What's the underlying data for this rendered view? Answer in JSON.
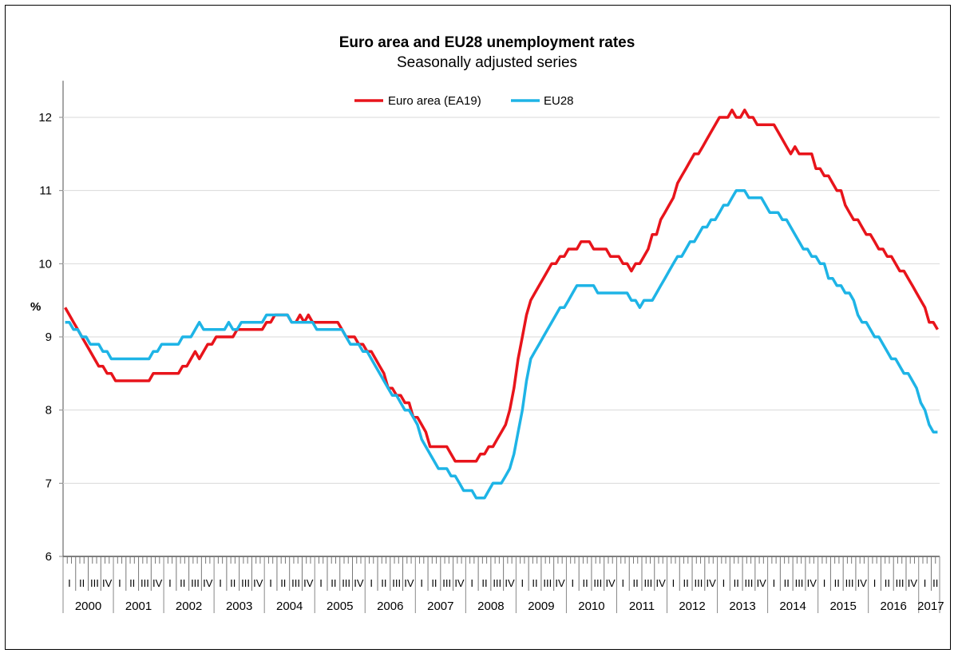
{
  "chart_data": {
    "type": "line",
    "title": "Euro area and EU28 unemployment rates",
    "subtitle": "Seasonally adjusted series",
    "ylabel": "%",
    "xlabel": "",
    "ylim": [
      6,
      12.5
    ],
    "yticks": [
      6,
      7,
      8,
      9,
      10,
      11,
      12
    ],
    "grid": true,
    "legend_position": "top-center",
    "x_start": "2000-01",
    "frequency": "monthly",
    "years": [
      "2000",
      "2001",
      "2002",
      "2003",
      "2004",
      "2005",
      "2006",
      "2007",
      "2008",
      "2009",
      "2010",
      "2011",
      "2012",
      "2013",
      "2014",
      "2015",
      "2016",
      "2017"
    ],
    "quarter_labels": [
      "I",
      "II",
      "III",
      "IV"
    ],
    "series": [
      {
        "name": "Euro area (EA19)",
        "color": "#e8141b",
        "values": [
          9.4,
          9.3,
          9.2,
          9.1,
          9.0,
          8.9,
          8.8,
          8.7,
          8.6,
          8.6,
          8.5,
          8.5,
          8.4,
          8.4,
          8.4,
          8.4,
          8.4,
          8.4,
          8.4,
          8.4,
          8.4,
          8.5,
          8.5,
          8.5,
          8.5,
          8.5,
          8.5,
          8.5,
          8.6,
          8.6,
          8.7,
          8.8,
          8.7,
          8.8,
          8.9,
          8.9,
          9.0,
          9.0,
          9.0,
          9.0,
          9.0,
          9.1,
          9.1,
          9.1,
          9.1,
          9.1,
          9.1,
          9.1,
          9.2,
          9.2,
          9.3,
          9.3,
          9.3,
          9.3,
          9.2,
          9.2,
          9.3,
          9.2,
          9.3,
          9.2,
          9.2,
          9.2,
          9.2,
          9.2,
          9.2,
          9.2,
          9.1,
          9.0,
          9.0,
          9.0,
          8.9,
          8.9,
          8.8,
          8.8,
          8.7,
          8.6,
          8.5,
          8.3,
          8.3,
          8.2,
          8.2,
          8.1,
          8.1,
          7.9,
          7.9,
          7.8,
          7.7,
          7.5,
          7.5,
          7.5,
          7.5,
          7.5,
          7.4,
          7.3,
          7.3,
          7.3,
          7.3,
          7.3,
          7.3,
          7.4,
          7.4,
          7.5,
          7.5,
          7.6,
          7.7,
          7.8,
          8.0,
          8.3,
          8.7,
          9.0,
          9.3,
          9.5,
          9.6,
          9.7,
          9.8,
          9.9,
          10.0,
          10.0,
          10.1,
          10.1,
          10.2,
          10.2,
          10.2,
          10.3,
          10.3,
          10.3,
          10.2,
          10.2,
          10.2,
          10.2,
          10.1,
          10.1,
          10.1,
          10.0,
          10.0,
          9.9,
          10.0,
          10.0,
          10.1,
          10.2,
          10.4,
          10.4,
          10.6,
          10.7,
          10.8,
          10.9,
          11.1,
          11.2,
          11.3,
          11.4,
          11.5,
          11.5,
          11.6,
          11.7,
          11.8,
          11.9,
          12.0,
          12.0,
          12.0,
          12.1,
          12.0,
          12.0,
          12.1,
          12.0,
          12.0,
          11.9,
          11.9,
          11.9,
          11.9,
          11.9,
          11.8,
          11.7,
          11.6,
          11.5,
          11.6,
          11.5,
          11.5,
          11.5,
          11.5,
          11.3,
          11.3,
          11.2,
          11.2,
          11.1,
          11.0,
          11.0,
          10.8,
          10.7,
          10.6,
          10.6,
          10.5,
          10.4,
          10.4,
          10.3,
          10.2,
          10.2,
          10.1,
          10.1,
          10.0,
          9.9,
          9.9,
          9.8,
          9.7,
          9.6,
          9.5,
          9.4,
          9.2,
          9.2,
          9.1
        ]
      },
      {
        "name": "EU28",
        "color": "#1eb4e6",
        "values": [
          9.2,
          9.2,
          9.1,
          9.1,
          9.0,
          9.0,
          8.9,
          8.9,
          8.9,
          8.8,
          8.8,
          8.7,
          8.7,
          8.7,
          8.7,
          8.7,
          8.7,
          8.7,
          8.7,
          8.7,
          8.7,
          8.8,
          8.8,
          8.9,
          8.9,
          8.9,
          8.9,
          8.9,
          9.0,
          9.0,
          9.0,
          9.1,
          9.2,
          9.1,
          9.1,
          9.1,
          9.1,
          9.1,
          9.1,
          9.2,
          9.1,
          9.1,
          9.2,
          9.2,
          9.2,
          9.2,
          9.2,
          9.2,
          9.3,
          9.3,
          9.3,
          9.3,
          9.3,
          9.3,
          9.2,
          9.2,
          9.2,
          9.2,
          9.2,
          9.2,
          9.1,
          9.1,
          9.1,
          9.1,
          9.1,
          9.1,
          9.1,
          9.0,
          8.9,
          8.9,
          8.9,
          8.8,
          8.8,
          8.7,
          8.6,
          8.5,
          8.4,
          8.3,
          8.2,
          8.2,
          8.1,
          8.0,
          8.0,
          7.9,
          7.8,
          7.6,
          7.5,
          7.4,
          7.3,
          7.2,
          7.2,
          7.2,
          7.1,
          7.1,
          7.0,
          6.9,
          6.9,
          6.9,
          6.8,
          6.8,
          6.8,
          6.9,
          7.0,
          7.0,
          7.0,
          7.1,
          7.2,
          7.4,
          7.7,
          8.0,
          8.4,
          8.7,
          8.8,
          8.9,
          9.0,
          9.1,
          9.2,
          9.3,
          9.4,
          9.4,
          9.5,
          9.6,
          9.7,
          9.7,
          9.7,
          9.7,
          9.7,
          9.6,
          9.6,
          9.6,
          9.6,
          9.6,
          9.6,
          9.6,
          9.6,
          9.5,
          9.5,
          9.4,
          9.5,
          9.5,
          9.5,
          9.6,
          9.7,
          9.8,
          9.9,
          10.0,
          10.1,
          10.1,
          10.2,
          10.3,
          10.3,
          10.4,
          10.5,
          10.5,
          10.6,
          10.6,
          10.7,
          10.8,
          10.8,
          10.9,
          11.0,
          11.0,
          11.0,
          10.9,
          10.9,
          10.9,
          10.9,
          10.8,
          10.7,
          10.7,
          10.7,
          10.6,
          10.6,
          10.5,
          10.4,
          10.3,
          10.2,
          10.2,
          10.1,
          10.1,
          10.0,
          10.0,
          9.8,
          9.8,
          9.7,
          9.7,
          9.6,
          9.6,
          9.5,
          9.3,
          9.2,
          9.2,
          9.1,
          9.0,
          9.0,
          8.9,
          8.8,
          8.7,
          8.7,
          8.6,
          8.5,
          8.5,
          8.4,
          8.3,
          8.1,
          8.0,
          7.8,
          7.7,
          7.7
        ]
      }
    ]
  }
}
